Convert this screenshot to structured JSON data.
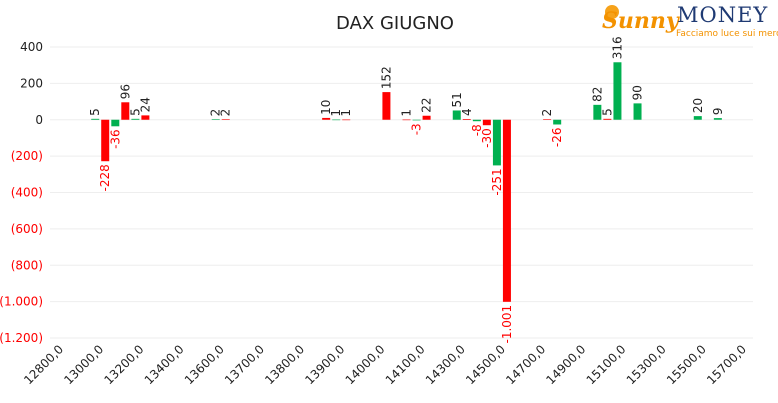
{
  "logo": {
    "brand": "Sunny",
    "brand2": "MONEY",
    "tagline": "Facciamo luce sui mercati"
  },
  "chart_data": {
    "type": "bar",
    "title": "DAX GIUGNO",
    "categories": [
      "12800,0",
      null,
      "13000,0",
      null,
      "13200,0",
      null,
      "13400,0",
      null,
      "13600,0",
      null,
      "13700,0",
      null,
      "13800,0",
      null,
      "13900,0",
      null,
      "14000,0",
      null,
      "14100,0",
      null,
      "14300,0",
      null,
      "14500,0",
      null,
      "14700,0",
      null,
      "14900,0",
      null,
      "15100,0",
      null,
      "15300,0",
      null,
      "15500,0",
      null,
      "15700,0"
    ],
    "series": [
      {
        "color": "#00b050",
        "values": [
          null,
          null,
          5,
          -36,
          5,
          null,
          null,
          null,
          2,
          null,
          null,
          null,
          null,
          null,
          1,
          null,
          null,
          null,
          -3,
          null,
          51,
          -8,
          -251,
          null,
          null,
          -26,
          null,
          82,
          316,
          90,
          null,
          null,
          20,
          9,
          null
        ]
      },
      {
        "color": "#ff0000",
        "values": [
          null,
          null,
          -228,
          96,
          24,
          null,
          null,
          null,
          2,
          null,
          null,
          null,
          null,
          10,
          1,
          null,
          152,
          1,
          22,
          null,
          4,
          -30,
          -1001,
          null,
          2,
          null,
          null,
          5,
          null,
          null,
          null,
          null,
          null,
          null,
          null
        ],
        "value_labels": [
          null,
          null,
          "-228",
          "96",
          "24",
          null,
          null,
          null,
          "2",
          null,
          null,
          null,
          null,
          "10",
          "1",
          null,
          "152",
          "1",
          "22",
          null,
          "4",
          "-30",
          "-1.001",
          null,
          "2",
          null,
          null,
          "5",
          null,
          null,
          null,
          null,
          null,
          null,
          null
        ]
      }
    ],
    "ylim": [
      -1200,
      400
    ],
    "yticks": [
      {
        "value": -1200,
        "label": "(1.200)"
      },
      {
        "value": -1000,
        "label": "(1.000)"
      },
      {
        "value": -800,
        "label": "(800)"
      },
      {
        "value": -600,
        "label": "(600)"
      },
      {
        "value": -400,
        "label": "(400)"
      },
      {
        "value": -200,
        "label": "(200)"
      },
      0,
      200,
      400
    ],
    "grid": true,
    "negative_color": "#ff0000",
    "positive_label_color": "#222222"
  }
}
